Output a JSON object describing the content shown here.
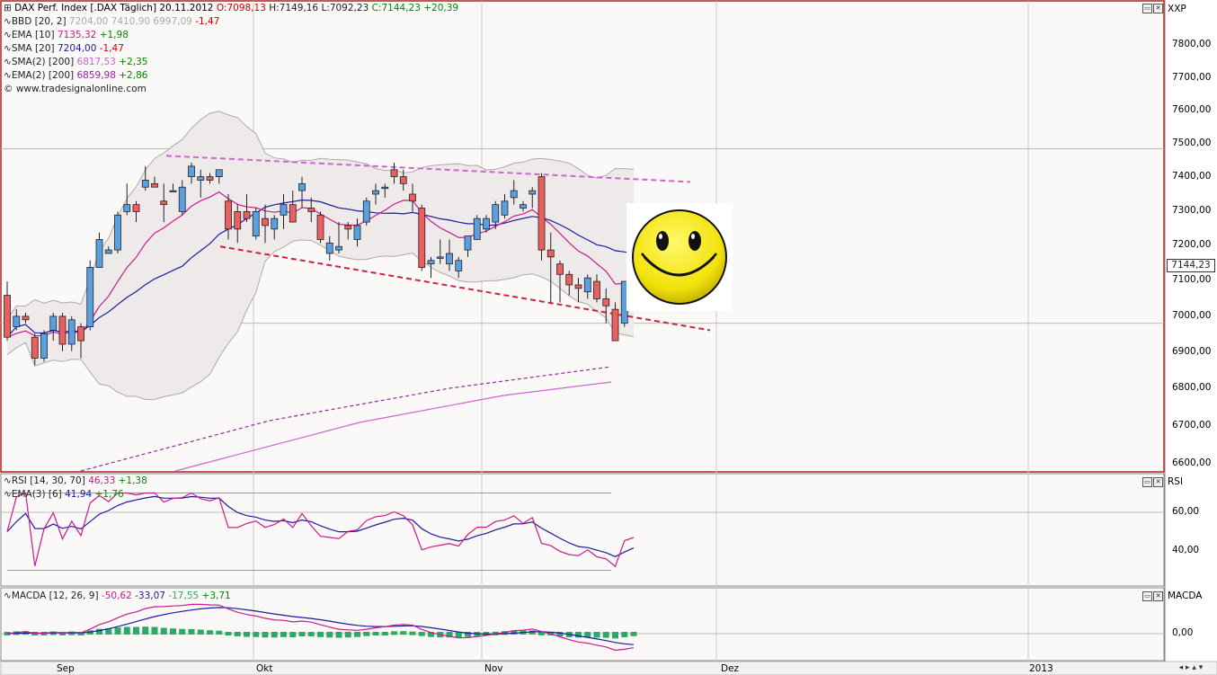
{
  "main_legend": {
    "title": "DAX Perf. Index [.DAX Täglich] 20.11.2012",
    "ohlc": {
      "o": "O:7098,13",
      "h": "H:7149,16",
      "l": "L:7092,23",
      "c": "C:7144,23",
      "chg": "+20,39"
    },
    "indicators": [
      {
        "label": "BBD [20, 2]",
        "vals": [
          "7204,00 7410,90 6997,09"
        ],
        "chg": "-1,47",
        "color": "#aaaaaa",
        "chg_color": "#cc0000"
      },
      {
        "label": "EMA [10]",
        "vals": [
          "7135,32"
        ],
        "chg": "+1,98",
        "color": "#cc1a8a",
        "chg_color": "#008800"
      },
      {
        "label": "SMA [20]",
        "vals": [
          "7204,00"
        ],
        "chg": "-1,47",
        "color": "#1a1aa0",
        "chg_color": "#cc0000"
      },
      {
        "label": "SMA(2) [200]",
        "vals": [
          "6817,53"
        ],
        "chg": "+2,35",
        "color": "#cc66cc",
        "chg_color": "#008800"
      },
      {
        "label": "EMA(2) [200]",
        "vals": [
          "6859,98"
        ],
        "chg": "+2,86",
        "color": "#9922aa",
        "chg_color": "#008800"
      }
    ],
    "copyright": "© www.tradesignalonline.com"
  },
  "rsi_legend": {
    "rsi": {
      "label": "RSI [14, 30, 70]",
      "val": "46,33",
      "chg": "+1,38"
    },
    "ema": {
      "label": "EMA(3) [6]",
      "val": "41,94",
      "chg": "+1,76"
    }
  },
  "macd_legend": {
    "label": "MACDA [12, 26, 9]",
    "v1": "-50,62",
    "v2": "-33,07",
    "v3": "-17,55",
    "v4": "+3,71"
  },
  "axis_names": {
    "main": "XXP",
    "rsi": "RSI",
    "macd": "MACDA"
  },
  "price_ticks": [
    "7800,00",
    "7700,00",
    "7600,00",
    "7500,00",
    "7400,00",
    "7300,00",
    "7200,00",
    "7100,00",
    "7000,00",
    "6900,00",
    "6800,00",
    "6700,00",
    "6600,00"
  ],
  "rsi_ticks": [
    "60,00",
    "40,00"
  ],
  "macd_ticks": [
    "0,00"
  ],
  "x_ticks": [
    "Sep",
    "Okt",
    "Nov",
    "Dez",
    "2013"
  ],
  "last_price_label": "7144,23",
  "colors": {
    "up": "#5aa0e0",
    "down": "#e86060",
    "bb": "#aaaaaa",
    "ema10": "#cc1a8a",
    "sma20": "#1a1aa0",
    "sma200": "#cc66cc",
    "ema200": "#9922aa",
    "trend": "#cc66cc",
    "trend_low": "#cc2244",
    "border": "#b22222",
    "smiley": "#f2e20a"
  },
  "smiley": "smiley-face",
  "chart_data": {
    "type": "candlestick",
    "ylim": [
      6580,
      7900
    ],
    "candles": [
      [
        7080,
        7120,
        6950,
        6960
      ],
      [
        6990,
        7040,
        6980,
        7020
      ],
      [
        7020,
        7030,
        7000,
        7010
      ],
      [
        6960,
        6970,
        6880,
        6900
      ],
      [
        6900,
        6980,
        6890,
        6970
      ],
      [
        6980,
        7030,
        6950,
        7020
      ],
      [
        7020,
        7030,
        6920,
        6940
      ],
      [
        6940,
        7020,
        6920,
        7010
      ],
      [
        6990,
        7000,
        6900,
        6950
      ],
      [
        6990,
        7180,
        6980,
        7160
      ],
      [
        7160,
        7260,
        7160,
        7240
      ],
      [
        7200,
        7220,
        7200,
        7210
      ],
      [
        7210,
        7320,
        7200,
        7310
      ],
      [
        7320,
        7400,
        7310,
        7340
      ],
      [
        7340,
        7350,
        7290,
        7320
      ],
      [
        7390,
        7450,
        7380,
        7410
      ],
      [
        7400,
        7420,
        7390,
        7390
      ],
      [
        7350,
        7400,
        7290,
        7340
      ],
      [
        7380,
        7400,
        7380,
        7380
      ],
      [
        7320,
        7410,
        7310,
        7390
      ],
      [
        7420,
        7460,
        7400,
        7450
      ],
      [
        7410,
        7440,
        7360,
        7420
      ],
      [
        7420,
        7430,
        7400,
        7410
      ],
      [
        7420,
        7440,
        7400,
        7440
      ],
      [
        7350,
        7370,
        7240,
        7270
      ],
      [
        7320,
        7340,
        7230,
        7270
      ],
      [
        7320,
        7370,
        7290,
        7300
      ],
      [
        7250,
        7330,
        7240,
        7320
      ],
      [
        7300,
        7340,
        7230,
        7280
      ],
      [
        7270,
        7310,
        7240,
        7300
      ],
      [
        7310,
        7370,
        7270,
        7340
      ],
      [
        7340,
        7380,
        7290,
        7290
      ],
      [
        7380,
        7420,
        7330,
        7400
      ],
      [
        7330,
        7360,
        7290,
        7320
      ],
      [
        7310,
        7320,
        7230,
        7240
      ],
      [
        7200,
        7250,
        7180,
        7230
      ],
      [
        7210,
        7290,
        7200,
        7220
      ],
      [
        7280,
        7290,
        7240,
        7270
      ],
      [
        7240,
        7300,
        7220,
        7280
      ],
      [
        7290,
        7360,
        7280,
        7350
      ],
      [
        7370,
        7400,
        7340,
        7380
      ],
      [
        7390,
        7400,
        7360,
        7390
      ],
      [
        7440,
        7460,
        7400,
        7420
      ],
      [
        7420,
        7440,
        7380,
        7400
      ],
      [
        7370,
        7400,
        7320,
        7350
      ],
      [
        7330,
        7340,
        7150,
        7160
      ],
      [
        7170,
        7190,
        7130,
        7180
      ],
      [
        7190,
        7240,
        7170,
        7190
      ],
      [
        7170,
        7240,
        7150,
        7200
      ],
      [
        7150,
        7190,
        7130,
        7180
      ],
      [
        7210,
        7250,
        7190,
        7250
      ],
      [
        7240,
        7310,
        7240,
        7300
      ],
      [
        7270,
        7310,
        7260,
        7300
      ],
      [
        7290,
        7350,
        7270,
        7340
      ],
      [
        7310,
        7370,
        7300,
        7350
      ],
      [
        7360,
        7410,
        7340,
        7380
      ],
      [
        7330,
        7350,
        7320,
        7340
      ],
      [
        7370,
        7390,
        7330,
        7380
      ],
      [
        7420,
        7430,
        7180,
        7210
      ],
      [
        7210,
        7260,
        7060,
        7190
      ],
      [
        7170,
        7180,
        7060,
        7140
      ],
      [
        7140,
        7150,
        7080,
        7110
      ],
      [
        7110,
        7130,
        7060,
        7100
      ],
      [
        7090,
        7140,
        7070,
        7130
      ],
      [
        7120,
        7140,
        7060,
        7070
      ],
      [
        7070,
        7100,
        7000,
        7050
      ],
      [
        7040,
        7060,
        6950,
        6950
      ],
      [
        7000,
        7120,
        6990,
        7120
      ],
      [
        7100,
        7150,
        7090,
        7144
      ]
    ]
  }
}
